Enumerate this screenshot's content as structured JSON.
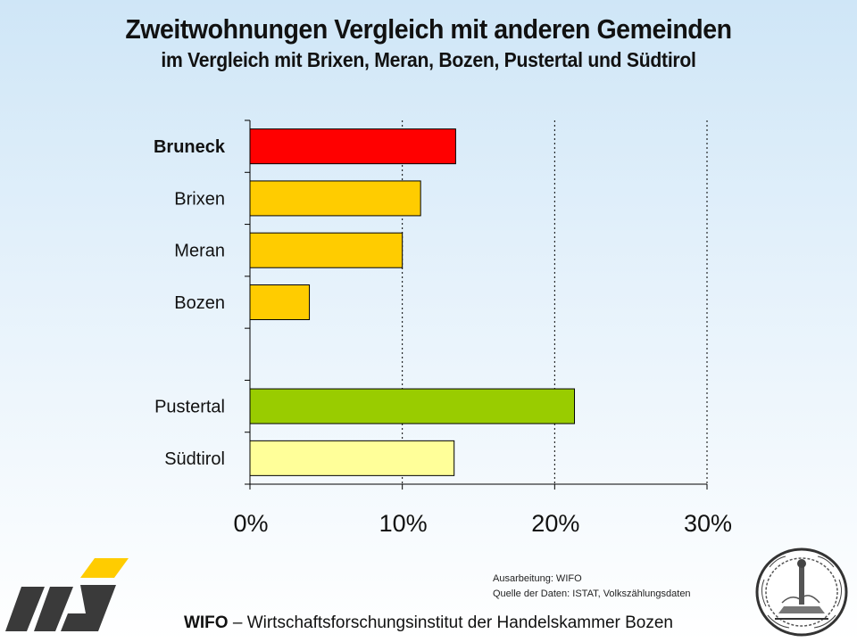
{
  "header": {
    "title": "Zweitwohnungen Vergleich mit anderen Gemeinden",
    "subtitle": "im Vergleich mit Brixen, Meran, Bozen, Pustertal und Südtirol"
  },
  "chart_data": {
    "type": "bar",
    "orientation": "horizontal",
    "categories": [
      "Bruneck",
      "Brixen",
      "Meran",
      "Bozen",
      "",
      "Pustertal",
      "Südtirol"
    ],
    "values": [
      13.5,
      11.2,
      10.0,
      3.9,
      null,
      21.3,
      13.4
    ],
    "bar_colors": [
      "#ff0000",
      "#ffcc00",
      "#ffcc00",
      "#ffcc00",
      null,
      "#99cc00",
      "#ffff99"
    ],
    "highlight_category": "Bruneck",
    "xlim": [
      0,
      30
    ],
    "xticks": [
      "0%",
      "10%",
      "20%",
      "30%"
    ],
    "grid": "vertical dotted",
    "title": "Zweitwohnungen Vergleich mit anderen Gemeinden",
    "xlabel": "",
    "ylabel": ""
  },
  "source": {
    "line1": "Ausarbeitung: WIFO",
    "line2": "Quelle der Daten: ISTAT, Volkszählungsdaten"
  },
  "footer": {
    "org": "WIFO",
    "text": " – Wirtschaftsforschungsinstitut der Handelskammer Bozen"
  },
  "colors": {
    "axis": "#000000",
    "logo_dark": "#3a3a3a",
    "logo_accent": "#ffcc00"
  },
  "icons": {
    "logo": "wifo-logo-icon",
    "seal": "chamber-seal-icon"
  }
}
